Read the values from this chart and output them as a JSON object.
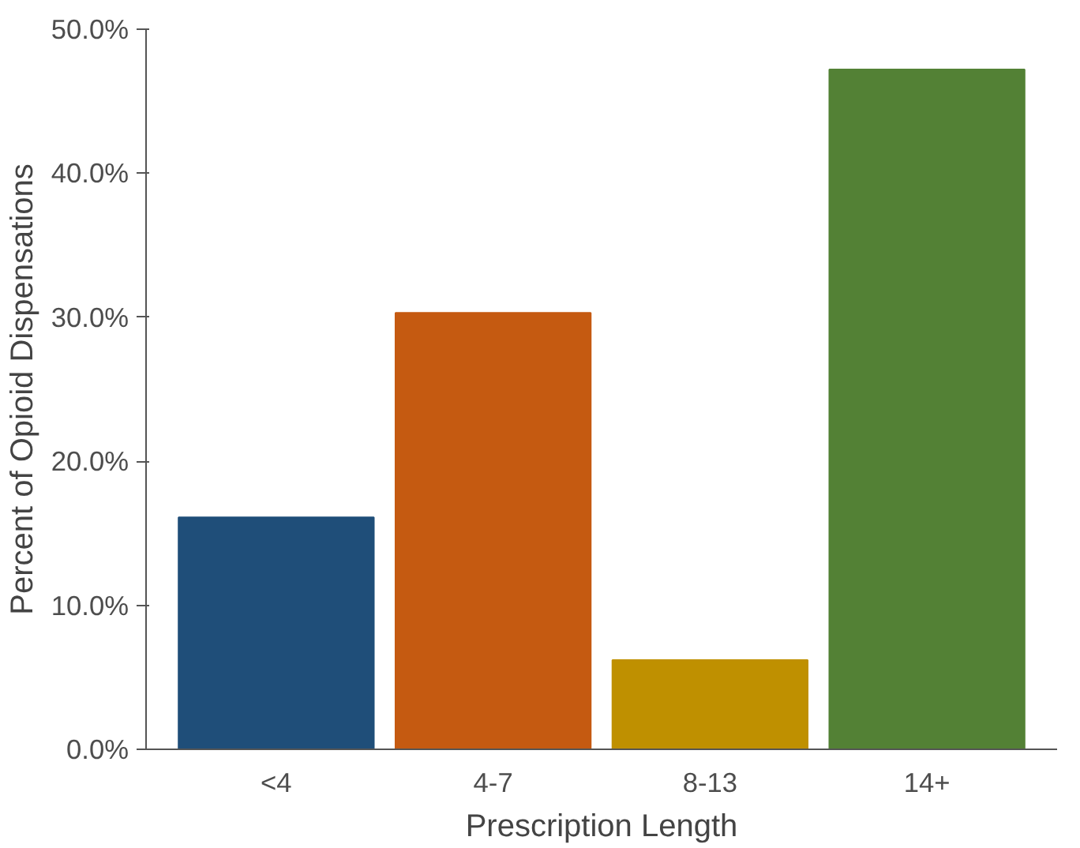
{
  "chart_data": {
    "type": "bar",
    "xlabel": "Prescription Length",
    "ylabel": "Percent of Opioid Dispensations",
    "categories": [
      "<4",
      "4-7",
      "8-13",
      "14+"
    ],
    "values": [
      16.1,
      30.3,
      6.2,
      47.2
    ],
    "colors": [
      "#1f4e79",
      "#c55a11",
      "#bf9000",
      "#538135"
    ],
    "ylim": [
      0,
      50
    ],
    "yticks": [
      {
        "value": 0,
        "label": "0.0%"
      },
      {
        "value": 10,
        "label": "10.0%"
      },
      {
        "value": 20,
        "label": "20.0%"
      },
      {
        "value": 30,
        "label": "30.0%"
      },
      {
        "value": 40,
        "label": "40.0%"
      },
      {
        "value": 50,
        "label": "50.0%"
      }
    ],
    "grid": false
  }
}
